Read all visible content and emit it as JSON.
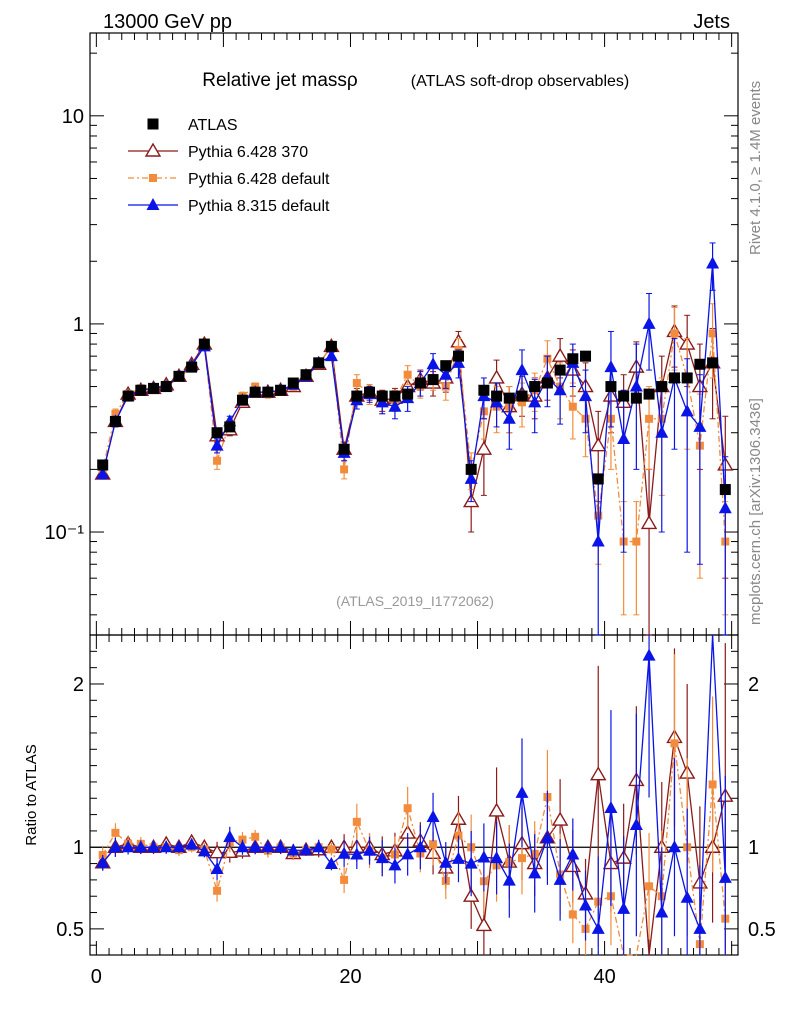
{
  "header": {
    "left": "13000 GeV pp",
    "right": "Jets"
  },
  "side_labels": {
    "rivet": "Rivet 4.1.0, ≥ 1.4M events",
    "mcplots": "mcplots.cern.ch [arXiv:1306.3436]"
  },
  "colors": {
    "ATLAS": "#000000",
    "Pythia 6.428 370": "#8b1a1a",
    "Pythia 6.428 default": "#f28c3c",
    "Pythia 8.315 default": "#0a14e6"
  },
  "chart_data": [
    {
      "type": "scatter",
      "title": "Relative jet massρ",
      "subtitle": "(ATLAS soft-drop observables)",
      "watermark": "(ATLAS_2019_I1772062)",
      "yscale": "log",
      "xlim": [
        -0.5,
        50.5
      ],
      "ylim": [
        0.032,
        25
      ],
      "yticks": [
        0.1,
        1,
        10
      ],
      "ytick_labels": [
        "10⁻¹",
        "1",
        "10"
      ],
      "legend": {
        "location": "top-left"
      },
      "series": [
        {
          "name": "ATLAS",
          "marker": "square",
          "x": [
            0.5,
            1.5,
            2.5,
            3.5,
            4.5,
            5.5,
            6.5,
            7.5,
            8.5,
            9.5,
            10.5,
            11.5,
            12.5,
            13.5,
            14.5,
            15.5,
            16.5,
            17.5,
            18.5,
            19.5,
            20.5,
            21.5,
            22.5,
            23.5,
            24.5,
            25.5,
            26.5,
            27.5,
            28.5,
            29.5,
            30.5,
            31.5,
            32.5,
            33.5,
            34.5,
            35.5,
            36.5,
            37.5,
            38.5,
            39.5,
            40.5,
            41.5,
            42.5,
            43.5,
            44.5,
            45.5,
            46.5,
            47.5,
            48.5,
            49.5
          ],
          "values": [
            0.21,
            0.34,
            0.45,
            0.48,
            0.49,
            0.5,
            0.56,
            0.62,
            0.8,
            0.3,
            0.32,
            0.43,
            0.47,
            0.47,
            0.48,
            0.52,
            0.57,
            0.65,
            0.78,
            0.25,
            0.45,
            0.47,
            0.45,
            0.45,
            0.46,
            0.52,
            0.54,
            0.63,
            0.7,
            0.2,
            0.48,
            0.45,
            0.44,
            0.45,
            0.5,
            0.52,
            0.6,
            0.68,
            0.7,
            0.18,
            0.5,
            0.45,
            0.44,
            0.46,
            0.5,
            0.55,
            0.55,
            0.64,
            0.65,
            0.16
          ]
        },
        {
          "name": "Pythia 6.428 370",
          "marker": "open-triangle",
          "x": [
            0.5,
            1.5,
            2.5,
            3.5,
            4.5,
            5.5,
            6.5,
            7.5,
            8.5,
            9.5,
            10.5,
            11.5,
            12.5,
            13.5,
            14.5,
            15.5,
            16.5,
            17.5,
            18.5,
            19.5,
            20.5,
            21.5,
            22.5,
            23.5,
            24.5,
            25.5,
            26.5,
            27.5,
            28.5,
            29.5,
            30.5,
            31.5,
            32.5,
            33.5,
            34.5,
            35.5,
            36.5,
            37.5,
            38.5,
            39.5,
            40.5,
            41.5,
            42.5,
            43.5,
            44.5,
            45.5,
            46.5,
            47.5,
            48.5,
            49.5
          ],
          "values": [
            0.19,
            0.34,
            0.46,
            0.48,
            0.49,
            0.51,
            0.56,
            0.64,
            0.8,
            0.29,
            0.31,
            0.42,
            0.47,
            0.47,
            0.48,
            0.5,
            0.56,
            0.64,
            0.78,
            0.25,
            0.45,
            0.47,
            0.43,
            0.44,
            0.5,
            0.54,
            0.52,
            0.55,
            0.82,
            0.14,
            0.25,
            0.55,
            0.4,
            0.46,
            0.45,
            0.55,
            0.7,
            0.6,
            0.5,
            0.26,
            0.45,
            0.42,
            0.62,
            0.11,
            0.5,
            0.92,
            0.8,
            0.5,
            0.65,
            0.21
          ],
          "errors": [
            0.01,
            0.02,
            0.02,
            0.02,
            0.02,
            0.02,
            0.02,
            0.02,
            0.03,
            0.02,
            0.02,
            0.02,
            0.02,
            0.02,
            0.02,
            0.02,
            0.02,
            0.03,
            0.03,
            0.02,
            0.04,
            0.04,
            0.05,
            0.05,
            0.06,
            0.06,
            0.07,
            0.08,
            0.1,
            0.04,
            0.1,
            0.12,
            0.1,
            0.1,
            0.1,
            0.12,
            0.15,
            0.15,
            0.15,
            0.12,
            0.15,
            0.15,
            0.2,
            0.09,
            0.2,
            0.3,
            0.3,
            0.3,
            0.3,
            0.15
          ]
        },
        {
          "name": "Pythia 6.428 default",
          "marker": "filled-square-small",
          "x": [
            0.5,
            1.5,
            2.5,
            3.5,
            4.5,
            5.5,
            6.5,
            7.5,
            8.5,
            9.5,
            10.5,
            11.5,
            12.5,
            13.5,
            14.5,
            15.5,
            16.5,
            17.5,
            18.5,
            19.5,
            20.5,
            21.5,
            22.5,
            23.5,
            24.5,
            25.5,
            26.5,
            27.5,
            28.5,
            29.5,
            30.5,
            31.5,
            32.5,
            33.5,
            34.5,
            35.5,
            36.5,
            37.5,
            38.5,
            39.5,
            40.5,
            41.5,
            42.5,
            43.5,
            44.5,
            45.5,
            46.5,
            47.5,
            48.5,
            49.5
          ],
          "values": [
            0.2,
            0.37,
            0.46,
            0.49,
            0.49,
            0.5,
            0.55,
            0.62,
            0.79,
            0.22,
            0.33,
            0.45,
            0.5,
            0.46,
            0.48,
            0.5,
            0.56,
            0.65,
            0.77,
            0.2,
            0.52,
            0.46,
            0.42,
            0.43,
            0.57,
            0.5,
            0.55,
            0.5,
            0.75,
            0.2,
            0.38,
            0.4,
            0.4,
            0.42,
            0.48,
            0.68,
            0.5,
            0.4,
            0.35,
            0.12,
            0.35,
            0.09,
            0.09,
            0.35,
            0.35,
            0.9,
            0.55,
            0.26,
            0.9,
            0.09
          ],
          "errors": [
            0.01,
            0.02,
            0.02,
            0.02,
            0.02,
            0.02,
            0.02,
            0.02,
            0.03,
            0.02,
            0.02,
            0.02,
            0.02,
            0.02,
            0.02,
            0.02,
            0.02,
            0.03,
            0.03,
            0.02,
            0.05,
            0.05,
            0.05,
            0.05,
            0.06,
            0.06,
            0.07,
            0.07,
            0.1,
            0.04,
            0.1,
            0.1,
            0.1,
            0.1,
            0.1,
            0.15,
            0.15,
            0.12,
            0.12,
            0.05,
            0.15,
            0.05,
            0.05,
            0.15,
            0.2,
            0.3,
            0.3,
            0.2,
            0.35,
            0.05
          ]
        },
        {
          "name": "Pythia 8.315 default",
          "marker": "filled-triangle",
          "x": [
            0.5,
            1.5,
            2.5,
            3.5,
            4.5,
            5.5,
            6.5,
            7.5,
            8.5,
            9.5,
            10.5,
            11.5,
            12.5,
            13.5,
            14.5,
            15.5,
            16.5,
            17.5,
            18.5,
            19.5,
            20.5,
            21.5,
            22.5,
            23.5,
            24.5,
            25.5,
            26.5,
            27.5,
            28.5,
            29.5,
            30.5,
            31.5,
            32.5,
            33.5,
            34.5,
            35.5,
            36.5,
            37.5,
            38.5,
            39.5,
            40.5,
            41.5,
            42.5,
            43.5,
            44.5,
            45.5,
            46.5,
            47.5,
            48.5,
            49.5
          ],
          "values": [
            0.19,
            0.34,
            0.45,
            0.48,
            0.49,
            0.5,
            0.56,
            0.63,
            0.78,
            0.26,
            0.34,
            0.43,
            0.47,
            0.47,
            0.48,
            0.51,
            0.56,
            0.65,
            0.7,
            0.24,
            0.43,
            0.46,
            0.42,
            0.4,
            0.44,
            0.52,
            0.64,
            0.57,
            0.65,
            0.18,
            0.45,
            0.42,
            0.35,
            0.6,
            0.42,
            0.55,
            0.48,
            0.65,
            0.45,
            0.09,
            0.62,
            0.28,
            0.5,
            1.0,
            0.3,
            0.55,
            0.38,
            0.32,
            1.95,
            0.13
          ],
          "errors": [
            0.01,
            0.02,
            0.02,
            0.02,
            0.02,
            0.02,
            0.02,
            0.02,
            0.03,
            0.02,
            0.02,
            0.02,
            0.02,
            0.02,
            0.02,
            0.02,
            0.02,
            0.03,
            0.03,
            0.02,
            0.04,
            0.04,
            0.05,
            0.05,
            0.06,
            0.07,
            0.08,
            0.08,
            0.1,
            0.04,
            0.1,
            0.1,
            0.1,
            0.15,
            0.12,
            0.15,
            0.15,
            0.15,
            0.15,
            0.08,
            0.3,
            0.2,
            0.3,
            0.4,
            0.2,
            0.3,
            0.3,
            0.25,
            0.5,
            0.1
          ]
        }
      ]
    },
    {
      "type": "scatter",
      "ylabel": "Ratio to ATLAS",
      "yscale": "linear",
      "xlim": [
        -0.5,
        50.5
      ],
      "ylim": [
        0.34,
        2.3
      ],
      "yticks": [
        0.5,
        1,
        2
      ],
      "ytick_labels": [
        "0.5",
        "1",
        "2"
      ],
      "xticks": [
        0,
        20,
        40
      ],
      "xtick_labels": [
        "0",
        "20",
        "40"
      ],
      "reference_line": 1
    }
  ]
}
